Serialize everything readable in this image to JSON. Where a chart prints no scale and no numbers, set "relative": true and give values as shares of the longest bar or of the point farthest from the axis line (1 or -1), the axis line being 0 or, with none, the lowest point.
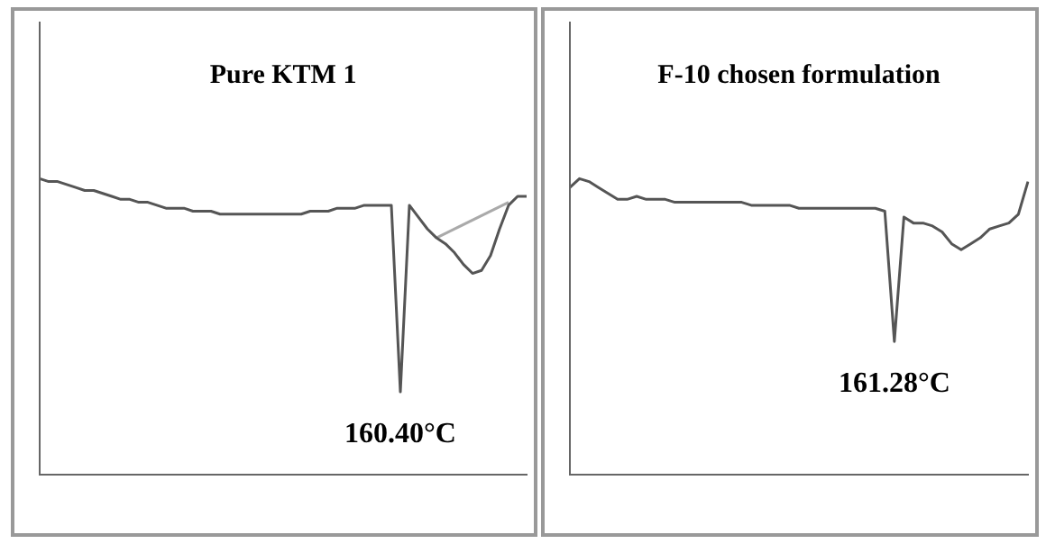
{
  "chart_data": [
    {
      "type": "line",
      "title": "Pure KTM 1",
      "relative": true,
      "annotations": [
        "160.40°C"
      ],
      "categories": [
        null,
        null,
        null,
        null,
        null,
        null,
        null,
        null,
        null,
        null,
        null,
        null,
        null,
        null,
        null,
        null,
        null,
        null,
        null,
        null,
        null,
        null,
        null,
        null,
        null,
        null,
        null,
        null,
        null,
        null,
        null,
        null,
        null,
        null,
        null,
        null,
        null,
        null,
        null,
        null,
        null,
        null,
        null,
        null,
        null,
        null,
        null,
        null,
        null,
        null,
        null,
        null,
        null,
        null,
        null
      ],
      "series": [
        {
          "color": "#555555",
          "values": [
            1.0,
            0.99,
            0.99,
            0.98,
            0.97,
            0.96,
            0.96,
            0.95,
            0.94,
            0.93,
            0.93,
            0.92,
            0.92,
            0.91,
            0.9,
            0.9,
            0.9,
            0.89,
            0.89,
            0.89,
            0.88,
            0.88,
            0.88,
            0.88,
            0.88,
            0.88,
            0.88,
            0.88,
            0.88,
            0.88,
            0.89,
            0.89,
            0.89,
            0.9,
            0.9,
            0.9,
            0.91,
            0.91,
            0.91,
            0.91,
            0.28,
            0.91,
            0.87,
            0.83,
            0.8,
            0.78,
            0.75,
            0.71,
            0.68,
            0.69,
            0.74,
            0.83,
            0.91,
            0.94,
            0.94
          ]
        },
        {
          "color": "#aaaaaa",
          "values": [
            null,
            null,
            null,
            null,
            null,
            null,
            null,
            null,
            null,
            null,
            null,
            null,
            null,
            null,
            null,
            null,
            null,
            null,
            null,
            null,
            null,
            null,
            null,
            null,
            null,
            null,
            null,
            null,
            null,
            null,
            null,
            null,
            null,
            null,
            null,
            null,
            null,
            null,
            null,
            null,
            null,
            null,
            null,
            null,
            0.8,
            null,
            null,
            null,
            null,
            null,
            null,
            null,
            0.92,
            null,
            null
          ]
        }
      ]
    },
    {
      "type": "line",
      "title": "F-10 chosen formulation",
      "relative": true,
      "annotations": [
        "161.28°C"
      ],
      "categories": [
        null,
        null,
        null,
        null,
        null,
        null,
        null,
        null,
        null,
        null,
        null,
        null,
        null,
        null,
        null,
        null,
        null,
        null,
        null,
        null,
        null,
        null,
        null,
        null,
        null,
        null,
        null,
        null,
        null,
        null,
        null,
        null,
        null,
        null,
        null,
        null,
        null,
        null,
        null,
        null,
        null,
        null,
        null,
        null,
        null,
        null,
        null,
        null,
        null
      ],
      "series": [
        {
          "color": "#555555",
          "values": [
            0.97,
            1.0,
            0.99,
            0.97,
            0.95,
            0.93,
            0.93,
            0.94,
            0.93,
            0.93,
            0.93,
            0.92,
            0.92,
            0.92,
            0.92,
            0.92,
            0.92,
            0.92,
            0.92,
            0.91,
            0.91,
            0.91,
            0.91,
            0.91,
            0.9,
            0.9,
            0.9,
            0.9,
            0.9,
            0.9,
            0.9,
            0.9,
            0.9,
            0.89,
            0.45,
            0.87,
            0.85,
            0.85,
            0.84,
            0.82,
            0.78,
            0.76,
            0.78,
            0.8,
            0.83,
            0.84,
            0.85,
            0.88,
            0.99
          ]
        }
      ]
    }
  ]
}
